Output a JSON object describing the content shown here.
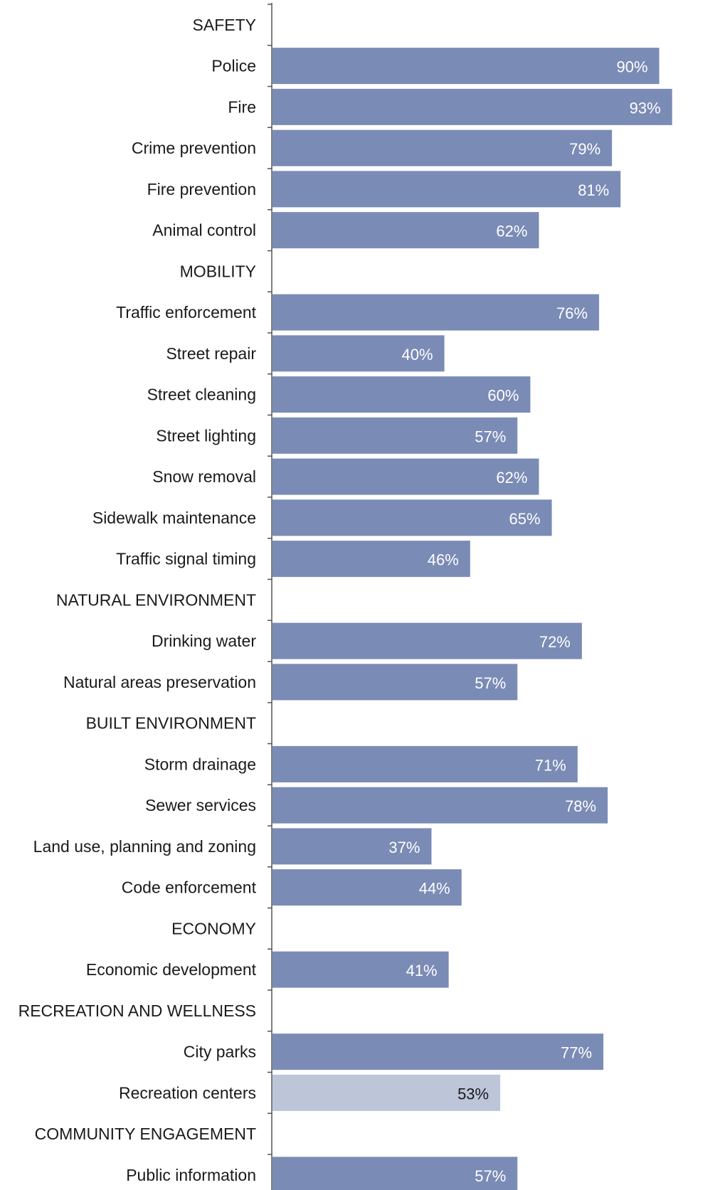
{
  "chart_data": {
    "type": "bar",
    "orientation": "horizontal",
    "xlim": [
      0,
      100
    ],
    "unit": "%",
    "colors": {
      "bar": "#7a8bb5",
      "bar_highlight": "#bdc5d9",
      "label_on_bar": "#ffffff",
      "label_on_highlight": "#1a1a1a",
      "axis": "#555555"
    },
    "rows": [
      {
        "label": "SAFETY",
        "header": true
      },
      {
        "label": "Police",
        "value": 90,
        "value_label": "90%"
      },
      {
        "label": "Fire",
        "value": 93,
        "value_label": "93%"
      },
      {
        "label": "Crime prevention",
        "value": 79,
        "value_label": "79%"
      },
      {
        "label": "Fire prevention",
        "value": 81,
        "value_label": "81%"
      },
      {
        "label": "Animal control",
        "value": 62,
        "value_label": "62%"
      },
      {
        "label": "MOBILITY",
        "header": true
      },
      {
        "label": "Traffic enforcement",
        "value": 76,
        "value_label": "76%"
      },
      {
        "label": "Street repair",
        "value": 40,
        "value_label": "40%"
      },
      {
        "label": "Street cleaning",
        "value": 60,
        "value_label": "60%"
      },
      {
        "label": "Street lighting",
        "value": 57,
        "value_label": "57%"
      },
      {
        "label": "Snow removal",
        "value": 62,
        "value_label": "62%"
      },
      {
        "label": "Sidewalk maintenance",
        "value": 65,
        "value_label": "65%"
      },
      {
        "label": "Traffic signal timing",
        "value": 46,
        "value_label": "46%"
      },
      {
        "label": "NATURAL ENVIRONMENT",
        "header": true
      },
      {
        "label": "Drinking water",
        "value": 72,
        "value_label": "72%"
      },
      {
        "label": "Natural areas preservation",
        "value": 57,
        "value_label": "57%"
      },
      {
        "label": "BUILT ENVIRONMENT",
        "header": true
      },
      {
        "label": "Storm drainage",
        "value": 71,
        "value_label": "71%"
      },
      {
        "label": "Sewer services",
        "value": 78,
        "value_label": "78%"
      },
      {
        "label": "Land use, planning and zoning",
        "value": 37,
        "value_label": "37%"
      },
      {
        "label": "Code enforcement",
        "value": 44,
        "value_label": "44%"
      },
      {
        "label": "ECONOMY",
        "header": true
      },
      {
        "label": "Economic development",
        "value": 41,
        "value_label": "41%"
      },
      {
        "label": "RECREATION AND WELLNESS",
        "header": true
      },
      {
        "label": "City parks",
        "value": 77,
        "value_label": "77%"
      },
      {
        "label": "Recreation centers",
        "value": 53,
        "value_label": "53%",
        "highlight": true
      },
      {
        "label": "COMMUNITY ENGAGEMENT",
        "header": true
      },
      {
        "label": "Public information",
        "value": 57,
        "value_label": "57%"
      }
    ]
  }
}
